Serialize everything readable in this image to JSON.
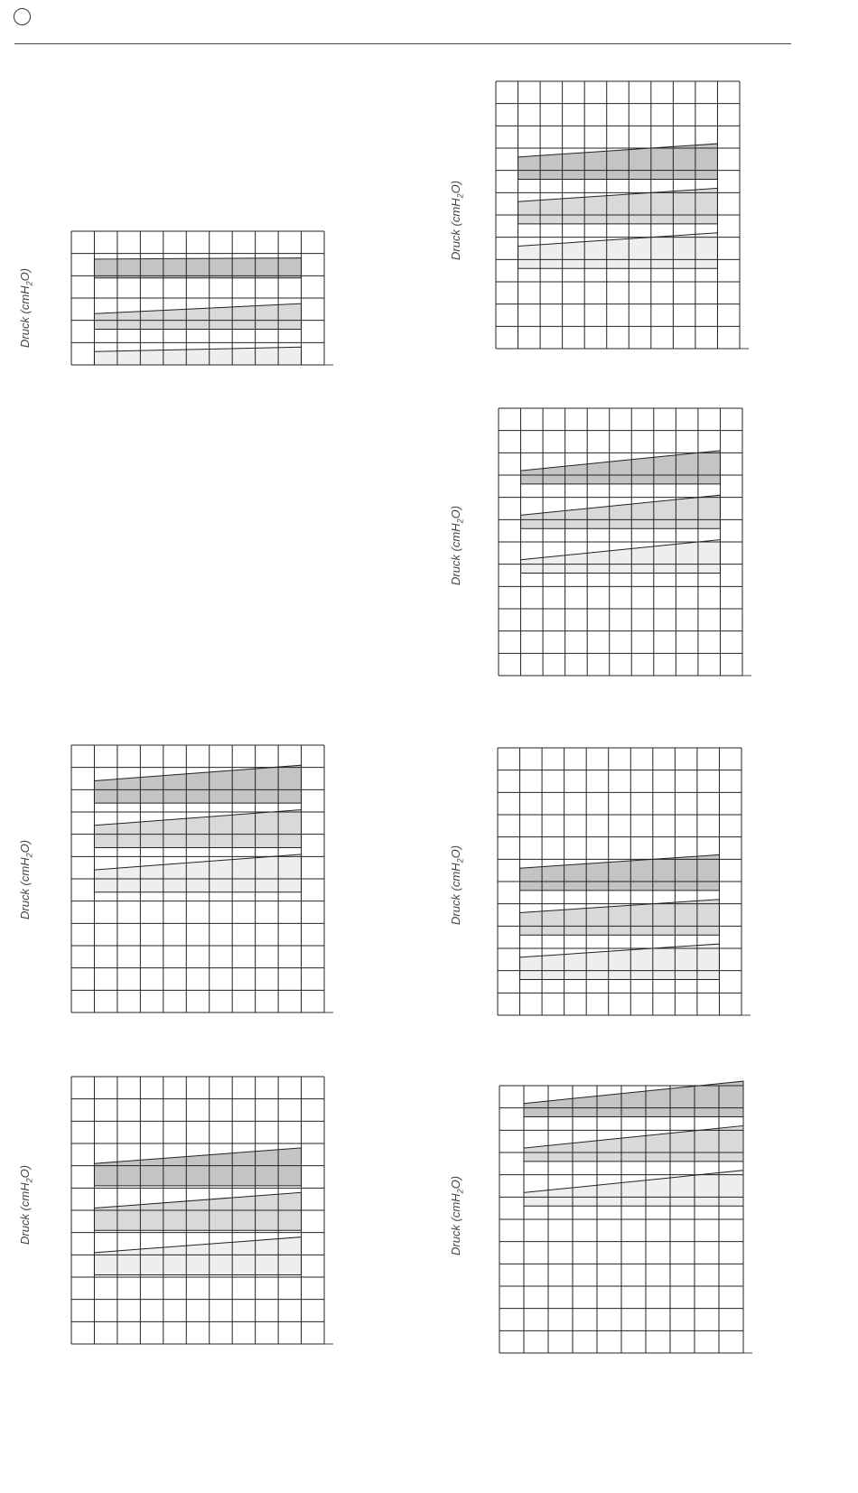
{
  "page": {
    "ylabel_prefix": "Druck (cmH",
    "ylabel_sub": "2",
    "ylabel_suffix": "O)"
  },
  "chart_data": [
    {
      "type": "area",
      "ylabel": "Druck (cmH2O)",
      "grid": true,
      "columns": 11,
      "rows": 6,
      "bands": [
        {
          "fill": "#c4c4c4",
          "x": [
            1,
            10
          ],
          "top": [
            4.75,
            4.8
          ],
          "bottom": [
            3.9,
            3.9
          ]
        },
        {
          "fill": "#d9d9d9",
          "x": [
            1,
            10
          ],
          "top": [
            2.3,
            2.75
          ],
          "bottom": [
            1.6,
            1.6
          ]
        },
        {
          "fill": "#eeeeee",
          "x": [
            1,
            10
          ],
          "top": [
            0.6,
            0.8
          ],
          "bottom": [
            0.0,
            0.0
          ]
        }
      ]
    },
    {
      "type": "area",
      "ylabel": "Druck (cmH2O)",
      "grid": true,
      "columns": 11,
      "rows": 12,
      "bands": [
        {
          "fill": "#c4c4c4",
          "x": [
            1,
            10
          ],
          "top": [
            8.6,
            9.2
          ],
          "bottom": [
            7.6,
            7.6
          ]
        },
        {
          "fill": "#d9d9d9",
          "x": [
            1,
            10
          ],
          "top": [
            6.6,
            7.2
          ],
          "bottom": [
            5.6,
            5.6
          ]
        },
        {
          "fill": "#eeeeee",
          "x": [
            1,
            10
          ],
          "top": [
            4.6,
            5.2
          ],
          "bottom": [
            3.6,
            3.6
          ]
        }
      ]
    },
    {
      "type": "area",
      "ylabel": "Druck (cmH2O)",
      "grid": true,
      "columns": 11,
      "rows": 12,
      "bands": [
        {
          "fill": "#c4c4c4",
          "x": [
            1,
            10
          ],
          "top": [
            9.2,
            10.1
          ],
          "bottom": [
            8.6,
            8.6
          ]
        },
        {
          "fill": "#d9d9d9",
          "x": [
            1,
            10
          ],
          "top": [
            7.2,
            8.1
          ],
          "bottom": [
            6.6,
            6.6
          ]
        },
        {
          "fill": "#eeeeee",
          "x": [
            1,
            10
          ],
          "top": [
            5.2,
            6.1
          ],
          "bottom": [
            4.6,
            4.6
          ]
        }
      ]
    },
    {
      "type": "area",
      "ylabel": "Druck (cmH2O)",
      "grid": true,
      "columns": 11,
      "rows": 12,
      "bands": [
        {
          "fill": "#c4c4c4",
          "x": [
            1,
            10
          ],
          "top": [
            10.4,
            11.1
          ],
          "bottom": [
            9.4,
            9.4
          ]
        },
        {
          "fill": "#d9d9d9",
          "x": [
            1,
            10
          ],
          "top": [
            8.4,
            9.1
          ],
          "bottom": [
            7.4,
            7.4
          ]
        },
        {
          "fill": "#eeeeee",
          "x": [
            1,
            10
          ],
          "top": [
            6.4,
            7.1
          ],
          "bottom": [
            5.4,
            5.4
          ]
        }
      ]
    },
    {
      "type": "area",
      "ylabel": "Druck (cmH2O)",
      "grid": true,
      "columns": 11,
      "rows": 12,
      "bands": [
        {
          "fill": "#c4c4c4",
          "x": [
            1,
            10
          ],
          "top": [
            6.6,
            7.2
          ],
          "bottom": [
            5.6,
            5.6
          ]
        },
        {
          "fill": "#d9d9d9",
          "x": [
            1,
            10
          ],
          "top": [
            4.6,
            5.2
          ],
          "bottom": [
            3.6,
            3.6
          ]
        },
        {
          "fill": "#eeeeee",
          "x": [
            1,
            10
          ],
          "top": [
            2.6,
            3.2
          ],
          "bottom": [
            1.6,
            1.6
          ]
        }
      ]
    },
    {
      "type": "area",
      "ylabel": "Druck (cmH2O)",
      "grid": true,
      "columns": 11,
      "rows": 12,
      "bands": [
        {
          "fill": "#c4c4c4",
          "x": [
            1,
            10
          ],
          "top": [
            8.1,
            8.8
          ],
          "bottom": [
            7.1,
            7.1
          ]
        },
        {
          "fill": "#d9d9d9",
          "x": [
            1,
            10
          ],
          "top": [
            6.1,
            6.8
          ],
          "bottom": [
            5.1,
            5.1
          ]
        },
        {
          "fill": "#eeeeee",
          "x": [
            1,
            10
          ],
          "top": [
            4.1,
            4.8
          ],
          "bottom": [
            3.1,
            3.1
          ]
        }
      ]
    },
    {
      "type": "area",
      "ylabel": "Druck (cmH2O)",
      "grid": true,
      "columns": 10,
      "rows": 12,
      "bands": [
        {
          "fill": "#c4c4c4",
          "x": [
            1,
            10
          ],
          "top": [
            11.2,
            12.2
          ],
          "bottom": [
            10.6,
            10.6
          ]
        },
        {
          "fill": "#d9d9d9",
          "x": [
            1,
            10
          ],
          "top": [
            9.2,
            10.2
          ],
          "bottom": [
            8.6,
            8.6
          ]
        },
        {
          "fill": "#eeeeee",
          "x": [
            1,
            10
          ],
          "top": [
            7.2,
            8.2
          ],
          "bottom": [
            6.6,
            6.6
          ]
        }
      ]
    }
  ]
}
